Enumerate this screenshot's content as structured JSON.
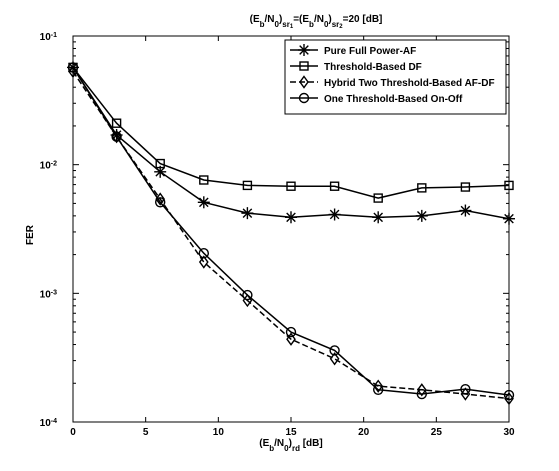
{
  "chart_data": {
    "type": "line",
    "title": {
      "text": "(E",
      "sub_b1": "b",
      "mid1": "/N",
      "sub_01": "0",
      "mid2": ")",
      "sub_sr1": "sr",
      "sub_sr1_idx": "1",
      "mid3": "=(E",
      "sub_b2": "b",
      "mid4": "/N",
      "sub_02": "0",
      "mid5": ")",
      "sub_sr2": "sr",
      "sub_sr2_idx": "2",
      "tail": "=20 [dB]"
    },
    "xlabel": {
      "text": "(E",
      "sub_b": "b",
      "mid": "/N",
      "sub_0": "0",
      "close": ")",
      "sub_rd": "rd",
      "tail": " [dB]"
    },
    "ylabel": "FER",
    "xlim": [
      0,
      30
    ],
    "ylim": [
      0.0001,
      0.1
    ],
    "yscale": "log",
    "xticks": [
      0,
      5,
      10,
      15,
      20,
      25,
      30
    ],
    "yticks": [
      {
        "value": 0.1,
        "base": "10",
        "exp": "-1"
      },
      {
        "value": 0.01,
        "base": "10",
        "exp": "-2"
      },
      {
        "value": 0.001,
        "base": "10",
        "exp": "-3"
      },
      {
        "value": 0.0001,
        "base": "10",
        "exp": "-4"
      }
    ],
    "grid": false,
    "legend_position": "top-right",
    "x": [
      0,
      3,
      6,
      9,
      12,
      15,
      18,
      21,
      24,
      27,
      30
    ],
    "series": [
      {
        "name": "Pure Full Power-AF",
        "marker": "asterisk",
        "dash": "solid",
        "values": [
          0.057,
          0.017,
          0.0088,
          0.0051,
          0.0042,
          0.0039,
          0.0041,
          0.0039,
          0.004,
          0.0044,
          0.0038
        ]
      },
      {
        "name": "Threshold-Based DF",
        "marker": "square",
        "dash": "solid",
        "values": [
          0.057,
          0.021,
          0.0102,
          0.0076,
          0.0069,
          0.0068,
          0.0068,
          0.0055,
          0.0066,
          0.0067,
          0.0069
        ]
      },
      {
        "name": "Hybrid Two Threshold-Based AF-DF",
        "marker": "diamond",
        "dash": "dashed",
        "values": [
          0.053,
          0.0165,
          0.0054,
          0.00175,
          0.00088,
          0.00044,
          0.00031,
          0.00019,
          0.000178,
          0.000165,
          0.000152
        ]
      },
      {
        "name": "One Threshold-Based On-Off",
        "marker": "circle",
        "dash": "solid",
        "values": [
          0.057,
          0.0165,
          0.0051,
          0.00205,
          0.00097,
          0.0005,
          0.00036,
          0.000178,
          0.000165,
          0.00018,
          0.000162
        ]
      }
    ]
  }
}
